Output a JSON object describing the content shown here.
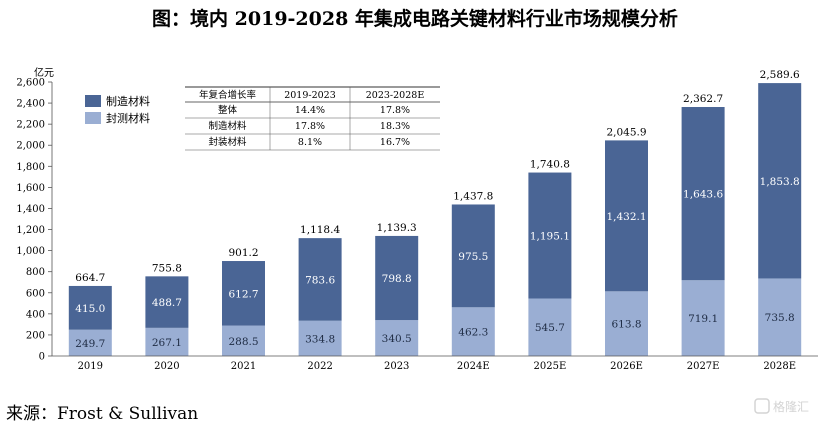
{
  "chart_data": {
    "type": "bar",
    "stacked": true,
    "title": "图：境内 2019-2028 年集成电路关键材料行业市场规模分析",
    "ylabel": "亿元",
    "categories": [
      "2019",
      "2020",
      "2021",
      "2022",
      "2023",
      "2024E",
      "2025E",
      "2026E",
      "2027E",
      "2028E"
    ],
    "series": [
      {
        "name": "封测材料",
        "values": [
          249.7,
          267.1,
          288.5,
          334.8,
          340.5,
          462.3,
          545.7,
          613.8,
          719.1,
          735.8
        ],
        "value_labels": [
          "249.7",
          "267.1",
          "288.5",
          "334.8",
          "340.5",
          "462.3",
          "545.7",
          "613.8",
          "719.1",
          "735.8"
        ],
        "color": "#9aaed3"
      },
      {
        "name": "制造材料",
        "values": [
          415.0,
          488.7,
          612.7,
          783.6,
          798.8,
          975.5,
          1195.1,
          1432.1,
          1643.6,
          1853.8
        ],
        "value_labels": [
          "415.0",
          "488.7",
          "612.7",
          "783.6",
          "798.8",
          "975.5",
          "1,195.1",
          "1,432.1",
          "1,643.6",
          "1,853.8"
        ],
        "color": "#4a6595"
      }
    ],
    "totals": [
      664.7,
      755.8,
      901.2,
      1118.4,
      1139.3,
      1437.8,
      1740.8,
      2045.9,
      2362.7,
      2589.6
    ],
    "total_labels": [
      "664.7",
      "755.8",
      "901.2",
      "1,118.4",
      "1,139.3",
      "1,437.8",
      "1,740.8",
      "2,045.9",
      "2,362.7",
      "2,589.6"
    ],
    "ylim": [
      0,
      2600
    ],
    "yticks": [
      0,
      200,
      400,
      600,
      800,
      1000,
      1200,
      1400,
      1600,
      1800,
      2000,
      2200,
      2400,
      2600
    ],
    "ytick_labels": [
      "0",
      "200",
      "400",
      "600",
      "800",
      "1,000",
      "1,200",
      "1,400",
      "1,600",
      "1,800",
      "2,000",
      "2,200",
      "2,400",
      "2,600"
    ],
    "legend_position": "top-left",
    "grid": false,
    "growth_table": {
      "headers": [
        "年复合增长率",
        "2019-2023",
        "2023-2028E"
      ],
      "rows": [
        [
          "整体",
          "14.4%",
          "17.8%"
        ],
        [
          "制造材料",
          "17.8%",
          "18.3%"
        ],
        [
          "封装材料",
          "8.1%",
          "16.7%"
        ]
      ]
    }
  },
  "source": "来源：Frost & Sullivan",
  "watermark": "格隆汇"
}
